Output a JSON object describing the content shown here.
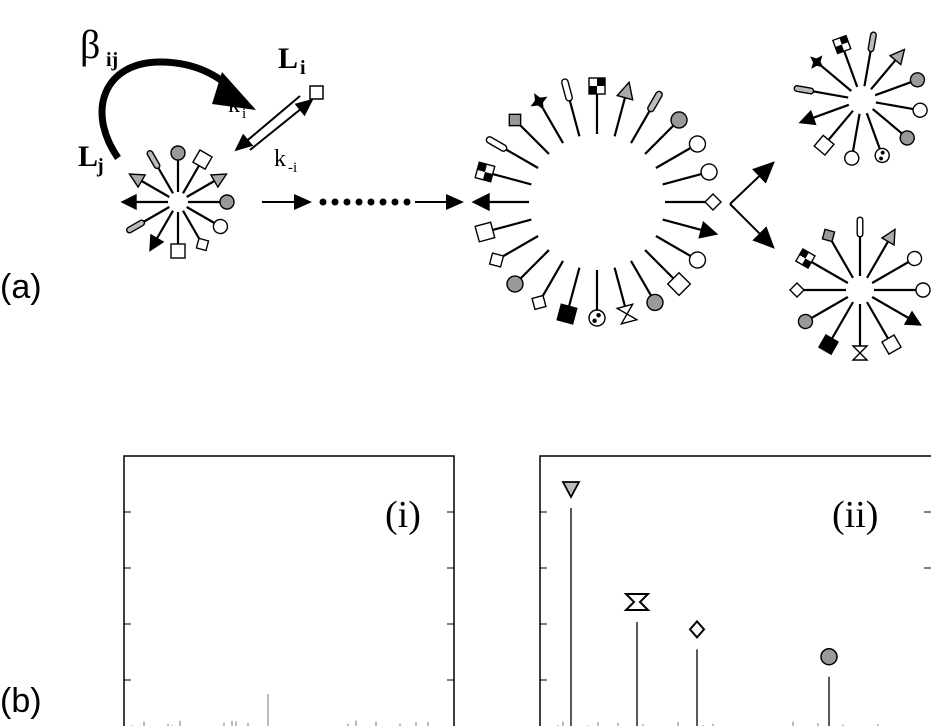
{
  "panel_a": {
    "label": "(a)",
    "beta": "β",
    "beta_sub": "ij",
    "Li": "L",
    "Li_sub": "i",
    "Lj": "L",
    "Lj_sub": "j",
    "ki": "k",
    "ki_sub": "i",
    "kmi": "k",
    "kmi_sub": "-i"
  },
  "panel_b": {
    "label": "(b)",
    "plot_i_label": "(i)",
    "plot_ii_label": "(ii)"
  },
  "chart_data": [
    {
      "type": "bar",
      "title": "(i)",
      "note": "small uniform peaks across the library"
    },
    {
      "type": "bar",
      "title": "(ii)",
      "peaks": [
        {
          "marker": "triangle-down",
          "value": 1.0
        },
        {
          "marker": "bowtie",
          "value": 0.5
        },
        {
          "marker": "diamond",
          "value": 0.38
        },
        {
          "marker": "circle",
          "value": 0.26
        }
      ]
    }
  ]
}
